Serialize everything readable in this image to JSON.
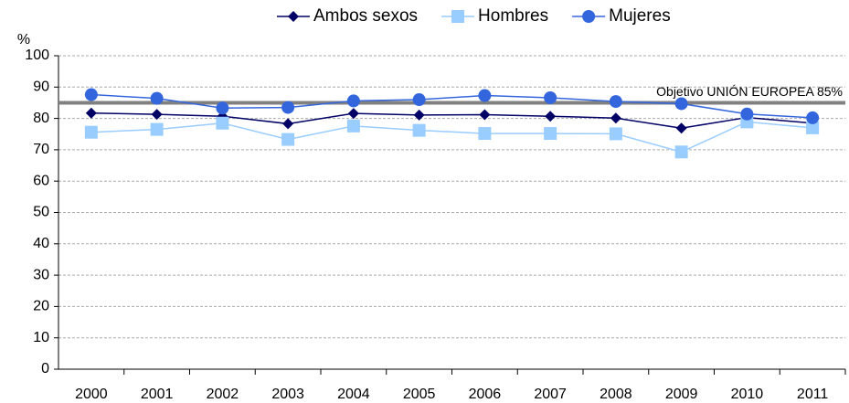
{
  "chart_data": {
    "type": "line",
    "y_label": "%",
    "categories": [
      "2000",
      "2001",
      "2002",
      "2003",
      "2004",
      "2005",
      "2006",
      "2007",
      "2008",
      "2009",
      "2010",
      "2011"
    ],
    "series": [
      {
        "name": "Ambos sexos",
        "color": "#000066",
        "marker": "diamond",
        "values": [
          81.7,
          81.3,
          80.7,
          78.3,
          81.6,
          81.1,
          81.2,
          80.7,
          80.1,
          76.9,
          80.3,
          78.5
        ]
      },
      {
        "name": "Hombres",
        "color": "#99ccff",
        "marker": "square",
        "values": [
          75.6,
          76.5,
          78.5,
          73.3,
          77.6,
          76.2,
          75.2,
          75.2,
          75.1,
          69.3,
          78.9,
          77.0
        ]
      },
      {
        "name": "Mujeres",
        "color": "#3366dd",
        "marker": "circle",
        "values": [
          87.6,
          86.4,
          83.3,
          83.5,
          85.6,
          86.0,
          87.3,
          86.6,
          85.4,
          84.7,
          81.4,
          80.2
        ]
      }
    ],
    "reference": {
      "value": 85,
      "label": "Objetivo UNIÓN EUROPEA 85%",
      "color": "#808080"
    },
    "ylim": [
      0,
      100
    ],
    "yticks": [
      0,
      10,
      20,
      30,
      40,
      50,
      60,
      70,
      80,
      90,
      100
    ],
    "grid": true,
    "legend": "top"
  }
}
